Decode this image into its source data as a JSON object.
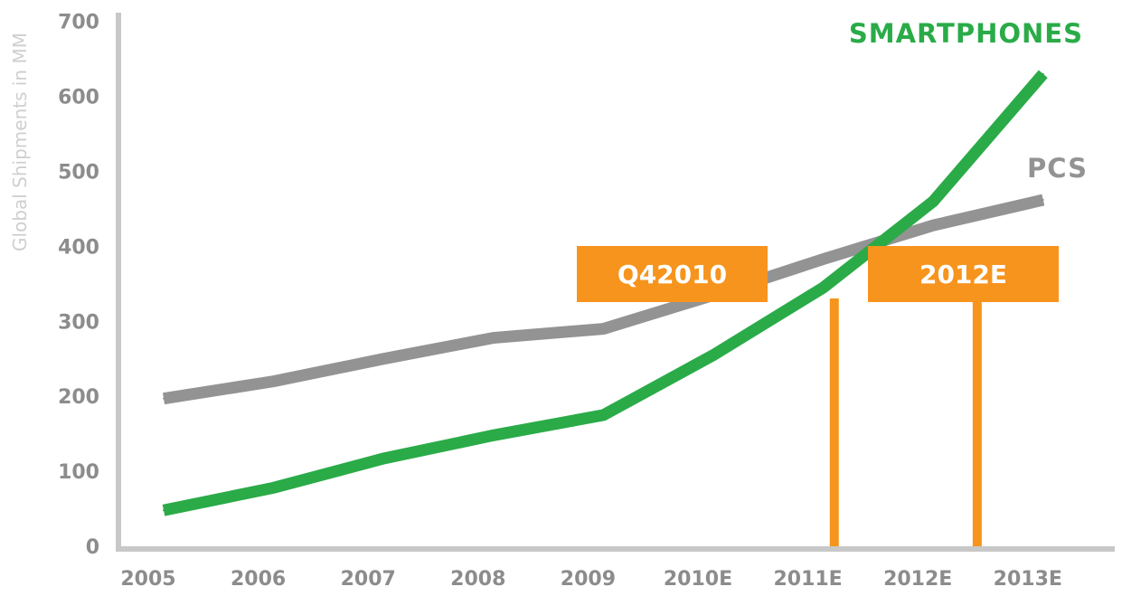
{
  "chart_data": {
    "type": "line",
    "categories": [
      "2005",
      "2006",
      "2007",
      "2008",
      "2009",
      "2010E",
      "2011E",
      "2012E",
      "2013E"
    ],
    "series": [
      {
        "name": "PCS",
        "color": "#939393",
        "values": [
          197,
          220,
          250,
          278,
          290,
          335,
          383,
          428,
          462
        ]
      },
      {
        "name": "SMARTPHONES",
        "color": "#2aab48",
        "values": [
          48,
          78,
          117,
          148,
          175,
          255,
          345,
          460,
          630
        ]
      }
    ],
    "ylabel": "Global Shipments in MM",
    "ylim": [
      0,
      700
    ],
    "yticks": [
      0,
      100,
      200,
      300,
      400,
      500,
      600,
      700
    ],
    "annotations": [
      {
        "label": "Q42010",
        "x": 6.1,
        "color": "#f7941d"
      },
      {
        "label": "2012E",
        "x": 7.4,
        "color": "#f7941d"
      }
    ],
    "axis_color": "#c8c8c8",
    "grid": false
  }
}
